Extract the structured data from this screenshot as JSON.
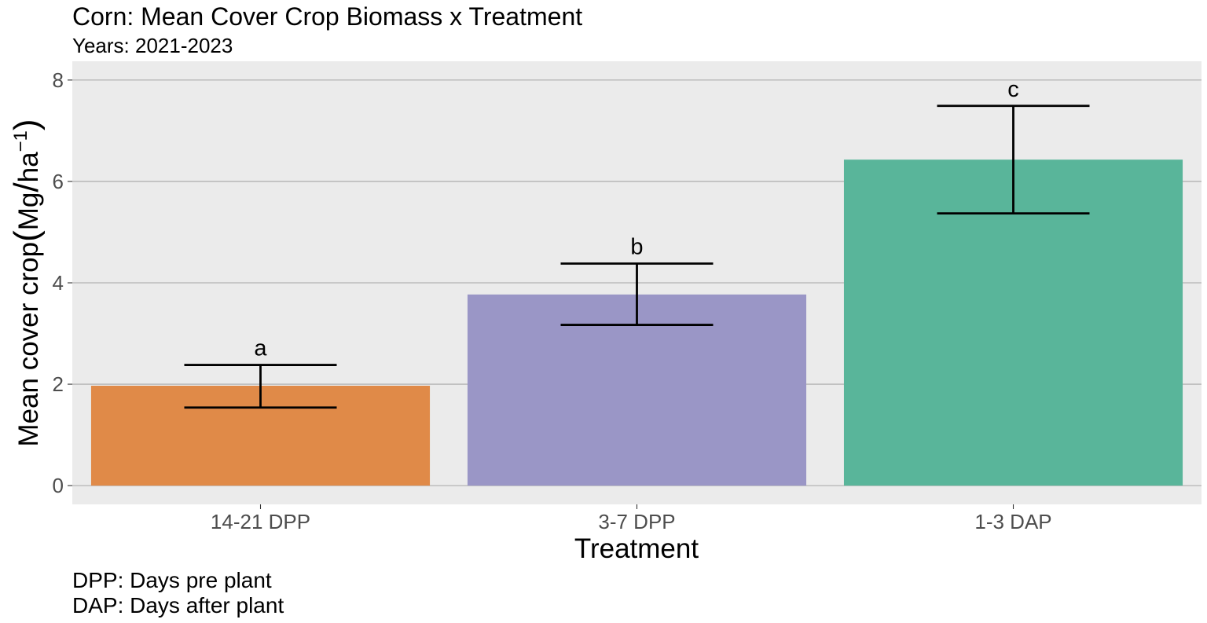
{
  "chart_data": {
    "type": "bar",
    "title": "Corn: Mean Cover Crop Biomass x Treatment",
    "subtitle": "Years: 2021-2023",
    "xlabel": "Treatment",
    "ylabel": {
      "main": "Mean cover crop",
      "open": "(",
      "unit1": "Mg",
      "slash": "/",
      "unit2": "ha",
      "exponent": "−1",
      "close": ")"
    },
    "categories": [
      "14-21 DPP",
      "3-7 DPP",
      "1-3 DAP"
    ],
    "values": [
      1.97,
      3.77,
      6.43
    ],
    "error_low": [
      1.54,
      3.17,
      5.37
    ],
    "error_high": [
      2.38,
      4.38,
      7.49
    ],
    "letters": [
      "a",
      "b",
      "c"
    ],
    "colors": [
      "#E08A48",
      "#9A96C6",
      "#59B59A"
    ],
    "ylim": [
      -0.37,
      8.37
    ],
    "yticks": [
      0,
      2,
      4,
      6,
      8
    ],
    "ytick_labels": [
      "0",
      "2",
      "4",
      "6",
      "8"
    ],
    "grid": true,
    "panel_background": "#EBEBEB",
    "gridline_color": "#A6A6A6"
  },
  "caption": {
    "line1": "DPP: Days pre plant",
    "line2": "DAP: Days after plant"
  }
}
